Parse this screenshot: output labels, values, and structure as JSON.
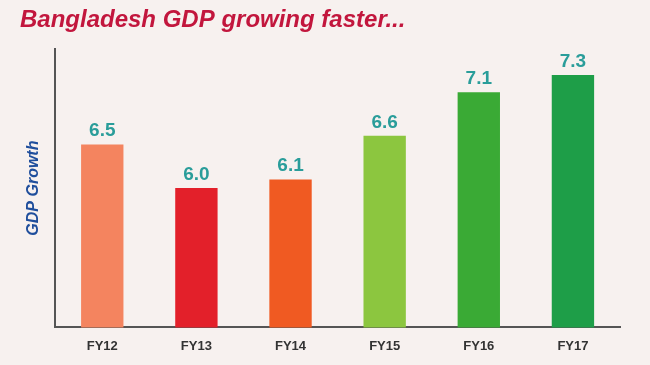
{
  "chart_data": {
    "type": "bar",
    "title": "Bangladesh GDP growing faster...",
    "y_label": "GDP Growth",
    "categories": [
      "FY12",
      "FY13",
      "FY14",
      "FY15",
      "FY16",
      "FY17"
    ],
    "values": [
      6.5,
      6.0,
      6.1,
      6.6,
      7.1,
      7.3
    ],
    "value_labels": [
      "6.5",
      "6.0",
      "6.1",
      "6.6",
      "7.1",
      "7.3"
    ],
    "colors": [
      "#f4845f",
      "#e3202a",
      "#f05a22",
      "#8cc63f",
      "#3aaa35",
      "#1e9e48"
    ],
    "ylim": [
      4.4,
      7.6
    ],
    "grid": false,
    "data_labels": true,
    "tick_labels": "x"
  }
}
